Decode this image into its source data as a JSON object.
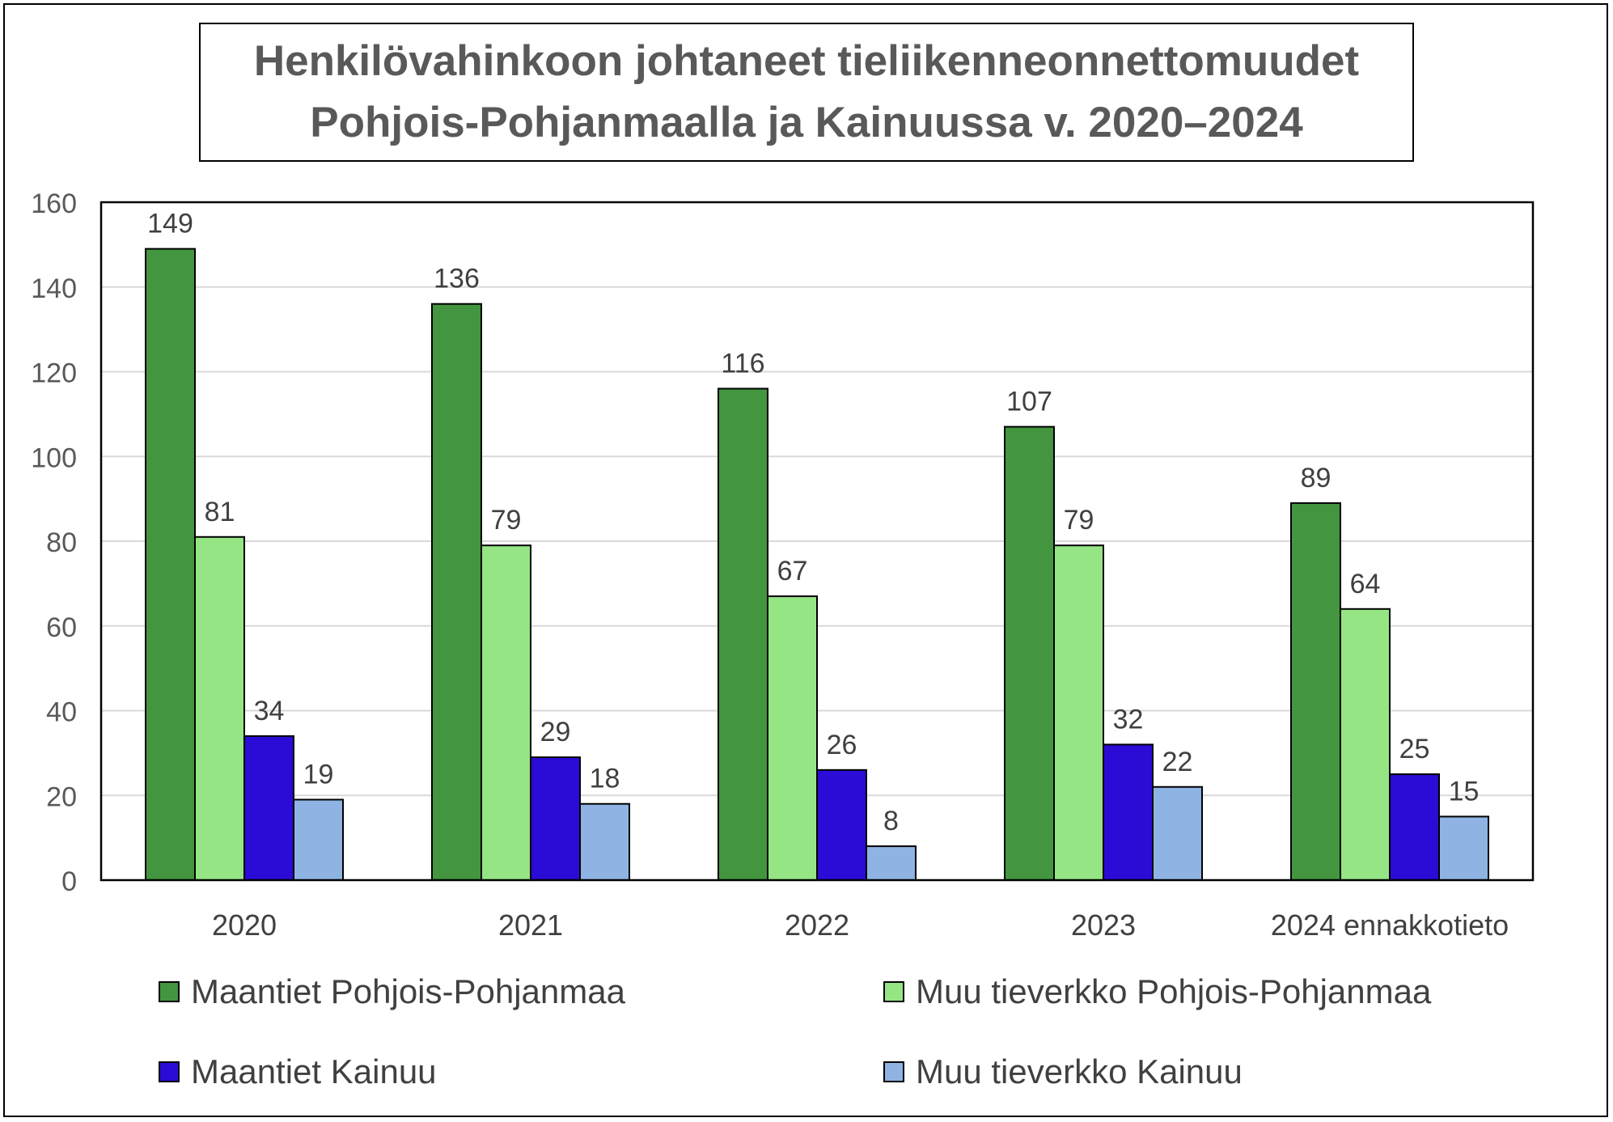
{
  "chart_data": {
    "type": "bar",
    "title_lines": [
      "Henkilövahinkoon johtaneet tieliikenneonnettomuudet",
      "Pohjois-Pohjanmaalla ja Kainuussa v. 2020–2024"
    ],
    "categories": [
      "2020",
      "2021",
      "2022",
      "2023",
      "2024 ennakkotieto"
    ],
    "series": [
      {
        "name": "Maantiet Pohjois-Pohjanmaa",
        "color": "#43953F",
        "values": [
          149,
          136,
          116,
          107,
          89
        ]
      },
      {
        "name": "Muu tieverkko Pohjois-Pohjanmaa",
        "color": "#95E585",
        "values": [
          81,
          79,
          67,
          79,
          64
        ]
      },
      {
        "name": "Maantiet Kainuu",
        "color": "#2B0BD6",
        "values": [
          34,
          29,
          26,
          32,
          25
        ]
      },
      {
        "name": "Muu tieverkko Kainuu",
        "color": "#8FB4E3",
        "values": [
          19,
          18,
          8,
          22,
          15
        ]
      }
    ],
    "ylim": [
      0,
      160
    ],
    "yticks": [
      0,
      20,
      40,
      60,
      80,
      100,
      120,
      140,
      160
    ],
    "xlabel": "",
    "ylabel": "",
    "grid": true,
    "legend_position": "bottom",
    "data_labels": true
  }
}
